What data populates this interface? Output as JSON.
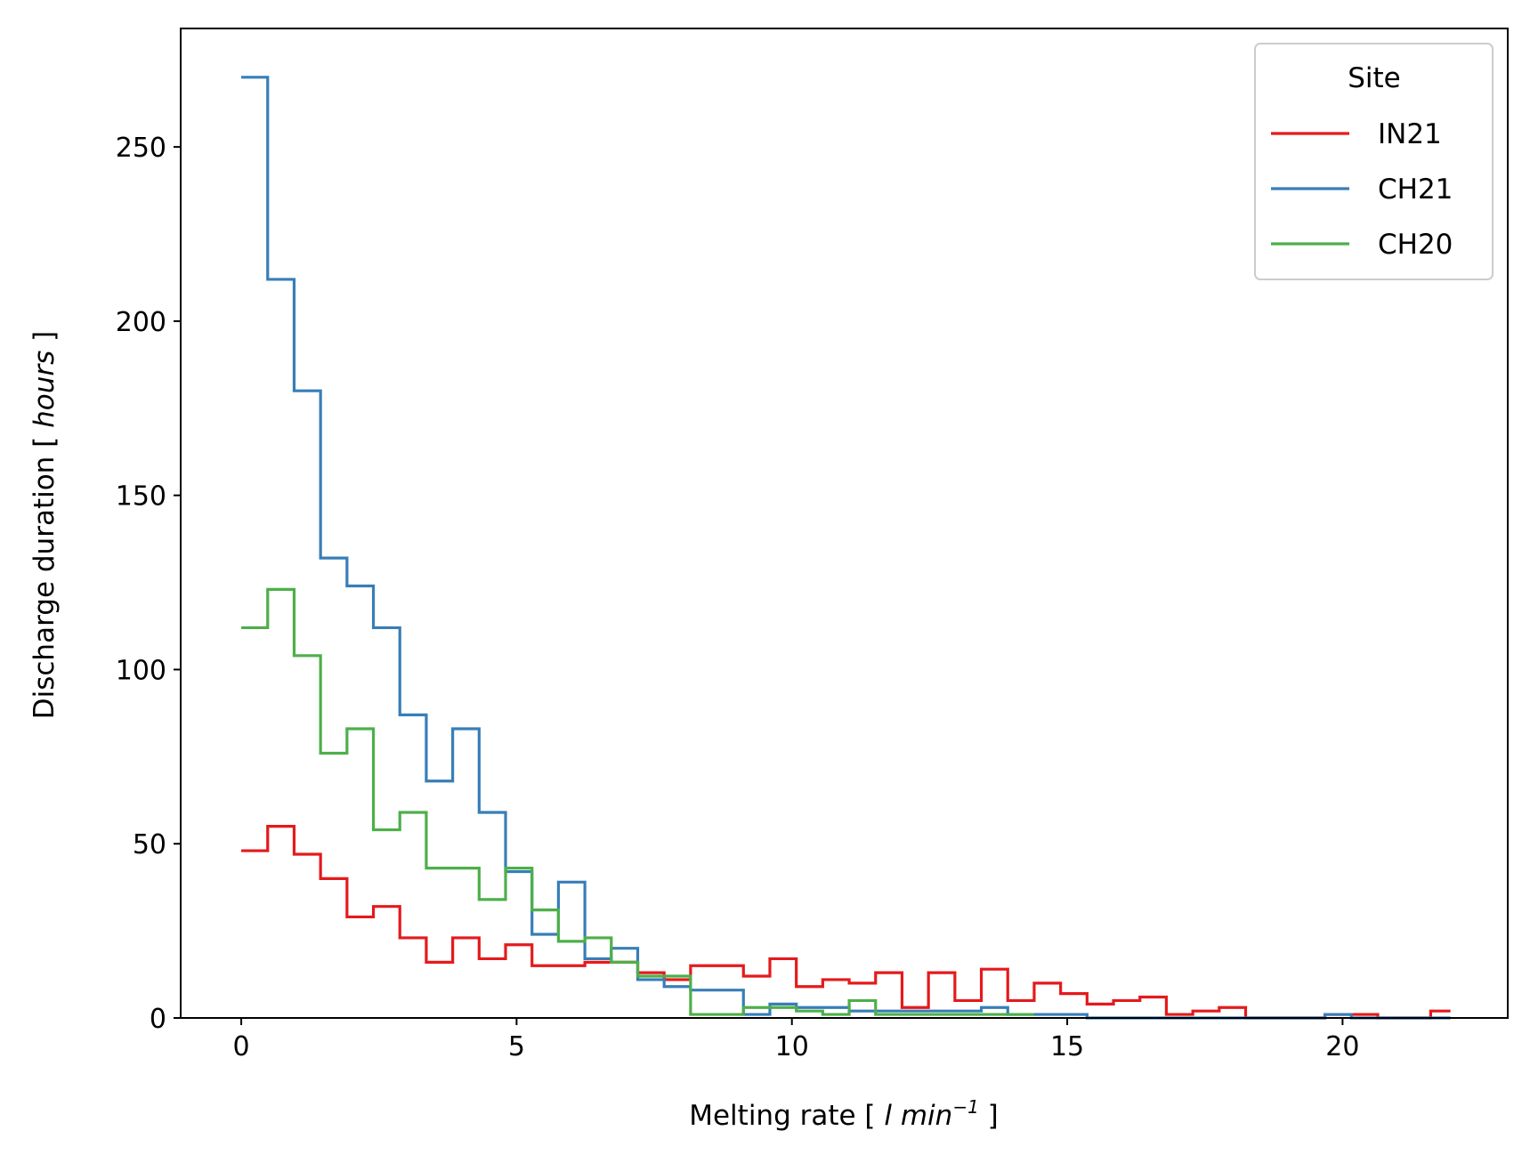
{
  "chart_data": {
    "type": "line",
    "drawstyle": "steps-post",
    "xlabel": {
      "prefix": "Melting rate [ ",
      "unit_main": "l min",
      "unit_exp": "−1",
      "suffix": " ]"
    },
    "ylabel": {
      "prefix": "Discharge duration [ ",
      "unit": "hours",
      "suffix": " ]"
    },
    "xlim": [
      -1.1,
      23.0
    ],
    "ylim": [
      0,
      284
    ],
    "xticks": [
      0,
      5,
      10,
      15,
      20
    ],
    "yticks": [
      0,
      50,
      100,
      150,
      200,
      250
    ],
    "grid": false,
    "legend": {
      "title": "Site",
      "placement": "top-right"
    },
    "series": [
      {
        "name": "IN21",
        "color": "#e41a1c",
        "x": [
          0,
          0.48,
          0.96,
          1.44,
          1.92,
          2.4,
          2.88,
          3.36,
          3.84,
          4.32,
          4.8,
          5.28,
          5.76,
          6.24,
          6.72,
          7.2,
          7.68,
          8.16,
          8.64,
          9.12,
          9.6,
          10.08,
          10.56,
          11.04,
          11.52,
          12.0,
          12.48,
          12.96,
          13.44,
          13.92,
          14.4,
          14.88,
          15.36,
          15.84,
          16.32,
          16.8,
          17.28,
          17.76,
          18.24,
          18.72,
          19.2,
          19.68,
          20.16,
          20.64,
          21.12,
          21.6,
          21.96
        ],
        "y": [
          48,
          55,
          47,
          40,
          29,
          32,
          23,
          16,
          23,
          17,
          21,
          15,
          15,
          16,
          16,
          13,
          11,
          15,
          15,
          12,
          17,
          9,
          11,
          10,
          13,
          3,
          13,
          5,
          14,
          5,
          10,
          7,
          4,
          5,
          6,
          1,
          2,
          3,
          0,
          0,
          0,
          1,
          1,
          0,
          0,
          2,
          2
        ]
      },
      {
        "name": "CH21",
        "color": "#377eb8",
        "x": [
          0,
          0.48,
          0.96,
          1.44,
          1.92,
          2.4,
          2.88,
          3.36,
          3.84,
          4.32,
          4.8,
          5.28,
          5.76,
          6.24,
          6.72,
          7.2,
          7.68,
          8.16,
          8.64,
          9.12,
          9.6,
          10.08,
          10.56,
          11.04,
          11.52,
          12.0,
          12.48,
          12.96,
          13.44,
          13.92,
          14.4,
          14.88,
          15.36,
          15.84,
          16.32,
          16.8,
          17.28,
          17.76,
          18.24,
          18.72,
          19.2,
          19.68,
          20.16,
          20.64,
          21.12,
          21.6,
          21.96
        ],
        "y": [
          270,
          212,
          180,
          132,
          124,
          112,
          87,
          68,
          83,
          59,
          42,
          24,
          39,
          17,
          20,
          11,
          9,
          8,
          8,
          1,
          4,
          3,
          3,
          2,
          2,
          2,
          2,
          2,
          3,
          1,
          1,
          1,
          0,
          0,
          0,
          0,
          0,
          0,
          0,
          0,
          0,
          1,
          0,
          0,
          0,
          0,
          0
        ]
      },
      {
        "name": "CH20",
        "color": "#4daf4a",
        "x": [
          0,
          0.48,
          0.96,
          1.44,
          1.92,
          2.4,
          2.88,
          3.36,
          3.84,
          4.32,
          4.8,
          5.28,
          5.76,
          6.24,
          6.72,
          7.2,
          7.68,
          8.16,
          8.64,
          9.12,
          9.6,
          10.08,
          10.56,
          11.04,
          11.52,
          12.0,
          12.48,
          12.96,
          13.44,
          13.92,
          14.4
        ],
        "y": [
          112,
          123,
          104,
          76,
          83,
          54,
          59,
          43,
          43,
          34,
          43,
          31,
          22,
          23,
          16,
          12,
          12,
          1,
          1,
          3,
          3,
          2,
          1,
          5,
          1,
          1,
          1,
          1,
          1,
          1,
          1
        ]
      }
    ]
  }
}
